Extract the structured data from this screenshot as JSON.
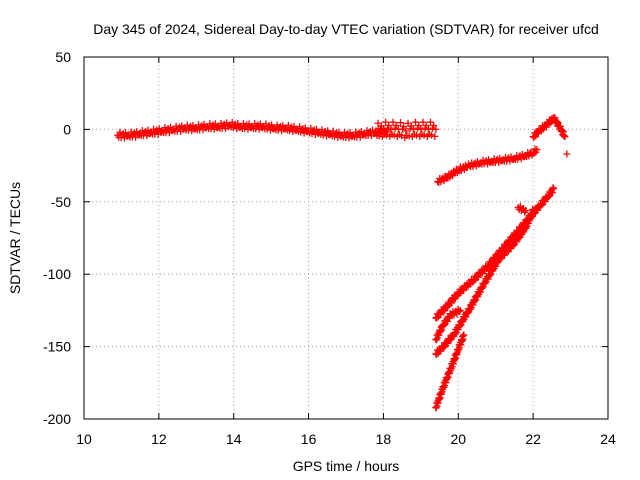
{
  "chart_data": {
    "type": "scatter",
    "title": "Day 345 of 2024, Sidereal Day-to-day VTEC variation (SDTVAR) for receiver ufcd",
    "xlabel": "GPS time / hours",
    "ylabel": "SDTVAR / TECUs",
    "xlim": [
      10,
      24
    ],
    "ylim": [
      -200,
      50
    ],
    "xticks": [
      "10",
      "12",
      "14",
      "16",
      "18",
      "20",
      "22",
      "24"
    ],
    "yticks": [
      "-200",
      "-150",
      "-100",
      "-50",
      "0",
      "50"
    ],
    "grid": true,
    "marker": "plus",
    "series_color": "#ff0000",
    "series": [
      {
        "segments": [
          {
            "x": [
              10.9,
              11.2,
              11.5,
              11.8,
              12.1,
              12.4,
              12.7,
              13.0,
              13.3,
              13.6,
              13.9,
              14.2,
              14.5,
              14.8,
              15.1,
              15.4,
              15.7,
              16.0,
              16.3,
              16.6,
              16.9,
              17.2,
              17.5,
              17.8,
              18.1
            ],
            "y": [
              -4,
              -4,
              -3,
              -2,
              -1,
              0,
              1,
              1,
              2,
              2,
              3,
              2,
              2,
              2,
              1,
              1,
              0,
              -1,
              -2,
              -3,
              -4,
              -4,
              -3,
              -2,
              -1
            ],
            "spread": 2
          },
          {
            "x": [
              17.8,
              18.0,
              18.2,
              18.4,
              18.6,
              18.8,
              19.0,
              19.2,
              19.4
            ],
            "y": [
              -1,
              0,
              0,
              0,
              -1,
              0,
              0,
              0,
              0
            ],
            "spread": 5
          },
          {
            "x": [
              19.45,
              19.7,
              20.0,
              20.3,
              20.6,
              20.9,
              21.2,
              21.5,
              21.8,
              22.0,
              22.1
            ],
            "y": [
              -36,
              -33,
              -28,
              -25,
              -23,
              -22,
              -21,
              -20,
              -18,
              -16,
              -14
            ],
            "spread": 1.5
          },
          {
            "x": [
              22.0,
              22.2,
              22.4,
              22.55,
              22.7,
              22.85
            ],
            "y": [
              -5,
              0,
              4,
              8,
              2,
              -5
            ],
            "spread": 1.5
          },
          {
            "x": [
              19.4,
              19.7,
              20.0,
              20.4,
              20.8,
              21.2,
              21.6,
              22.0,
              22.2,
              22.4,
              22.55
            ],
            "y": [
              -130,
              -122,
              -113,
              -104,
              -94,
              -82,
              -70,
              -58,
              -52,
              -46,
              -41
            ],
            "spread": 1.5
          },
          {
            "x": [
              19.4,
              19.6,
              19.9,
              20.3,
              20.7,
              21.1,
              21.45,
              21.8,
              22.0
            ],
            "y": [
              -155,
              -150,
              -141,
              -124,
              -106,
              -89,
              -80,
              -68,
              -56
            ],
            "spread": 1.5
          },
          {
            "x": [
              19.4,
              19.6,
              19.8,
              20.05
            ],
            "y": [
              -145,
              -135,
              -128,
              -125
            ],
            "spread": 1.5
          },
          {
            "x": [
              19.4,
              19.6,
              19.8,
              20.0,
              20.15
            ],
            "y": [
              -192,
              -178,
              -165,
              -152,
              -142
            ],
            "spread": 1.5
          },
          {
            "x": [
              21.6,
              21.8
            ],
            "y": [
              -54,
              -56
            ],
            "spread": 1.5
          },
          {
            "x": [
              22.9
            ],
            "y": [
              -17
            ],
            "spread": 0
          }
        ]
      }
    ]
  }
}
